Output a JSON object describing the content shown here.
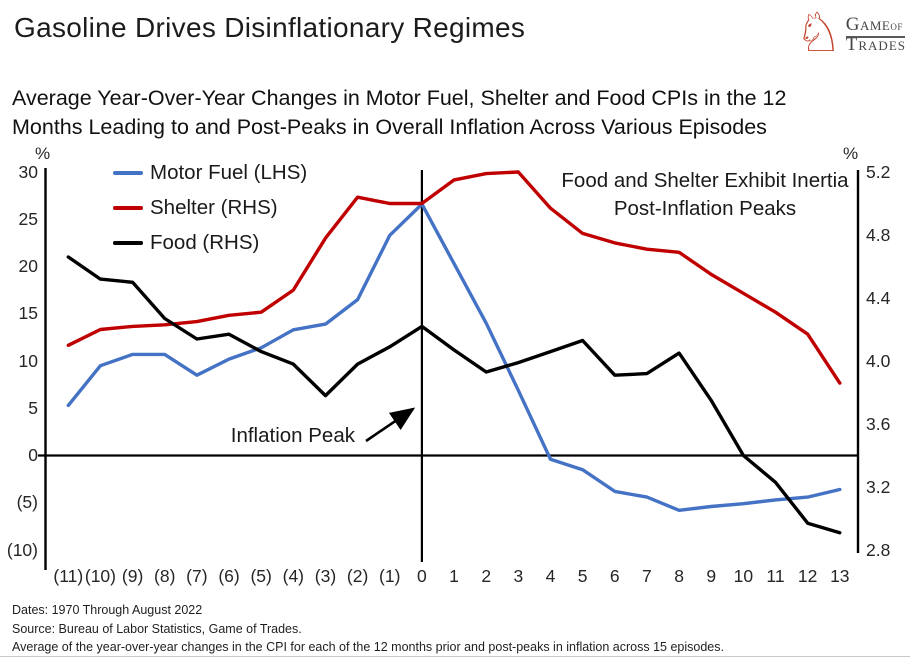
{
  "header": {
    "title": "Gasoline Drives Disinflationary Regimes",
    "subtitle_line1": "Average Year-Over-Year Changes in Motor Fuel, Shelter and Food CPIs in the 12",
    "subtitle_line2": "Months Leading to and Post-Peaks in Overall Inflation Across Various Episodes",
    "logo": {
      "knight_glyph": "♘",
      "accent_color": "#c4432b",
      "word1": "Game",
      "word1b": "of",
      "word2": "Trades"
    }
  },
  "chart_data": {
    "type": "line",
    "x_labels": [
      "(11)",
      "(10)",
      "(9)",
      "(8)",
      "(7)",
      "(6)",
      "(5)",
      "(4)",
      "(3)",
      "(2)",
      "(1)",
      "0",
      "1",
      "2",
      "3",
      "4",
      "5",
      "6",
      "7",
      "8",
      "9",
      "10",
      "11",
      "12",
      "13"
    ],
    "left_axis": {
      "unit": "%",
      "ticks": [
        "30",
        "25",
        "20",
        "15",
        "10",
        "5",
        "0",
        "(5)",
        "(10)"
      ],
      "min": -10,
      "max": 30
    },
    "right_axis": {
      "unit": "%",
      "ticks": [
        "5.2",
        "4.8",
        "4.4",
        "4.0",
        "3.6",
        "3.2",
        "2.8"
      ],
      "min": 2.8,
      "max": 5.2
    },
    "grid": false,
    "legend_position": "top-left-inside",
    "series": [
      {
        "name": "Motor Fuel (LHS)",
        "axis": "left",
        "color": "#4472c4",
        "values": [
          5.3,
          9.5,
          10.7,
          10.7,
          8.5,
          10.2,
          11.4,
          13.3,
          13.9,
          16.5,
          23.3,
          26.6,
          20.3,
          14.0,
          6.9,
          -0.4,
          -1.5,
          -3.8,
          -4.4,
          -5.8,
          -5.4,
          -5.1,
          -4.7,
          -4.4,
          -3.6
        ]
      },
      {
        "name": "Shelter (RHS)",
        "axis": "right",
        "color": "#c00000",
        "values": [
          4.1,
          4.2,
          4.22,
          4.23,
          4.25,
          4.29,
          4.31,
          4.45,
          4.78,
          5.04,
          5.0,
          5.0,
          5.15,
          5.19,
          5.2,
          4.97,
          4.81,
          4.75,
          4.71,
          4.69,
          4.55,
          4.43,
          4.31,
          4.17,
          3.86
        ]
      },
      {
        "name": "Food (RHS)",
        "axis": "right",
        "color": "#000000",
        "values": [
          4.66,
          4.52,
          4.5,
          4.27,
          4.14,
          4.17,
          4.06,
          3.98,
          3.78,
          3.98,
          4.09,
          4.22,
          4.07,
          3.93,
          3.99,
          4.06,
          4.13,
          3.91,
          3.92,
          4.05,
          3.75,
          3.4,
          3.23,
          2.97,
          2.91
        ]
      }
    ],
    "annotations": {
      "inflation_peak": "Inflation Peak",
      "inertia_line1": "Food and Shelter Exhibit Inertia",
      "inertia_line2": "Post-Inflation Peaks"
    }
  },
  "footer": {
    "line1": "Dates: 1970 Through August 2022",
    "line2": "Source: Bureau of Labor Statistics, Game of Trades.",
    "line3": "Average of the year-over-year changes in the CPI for each of the 12 months prior and post-peaks in inflation across 15 episodes."
  }
}
